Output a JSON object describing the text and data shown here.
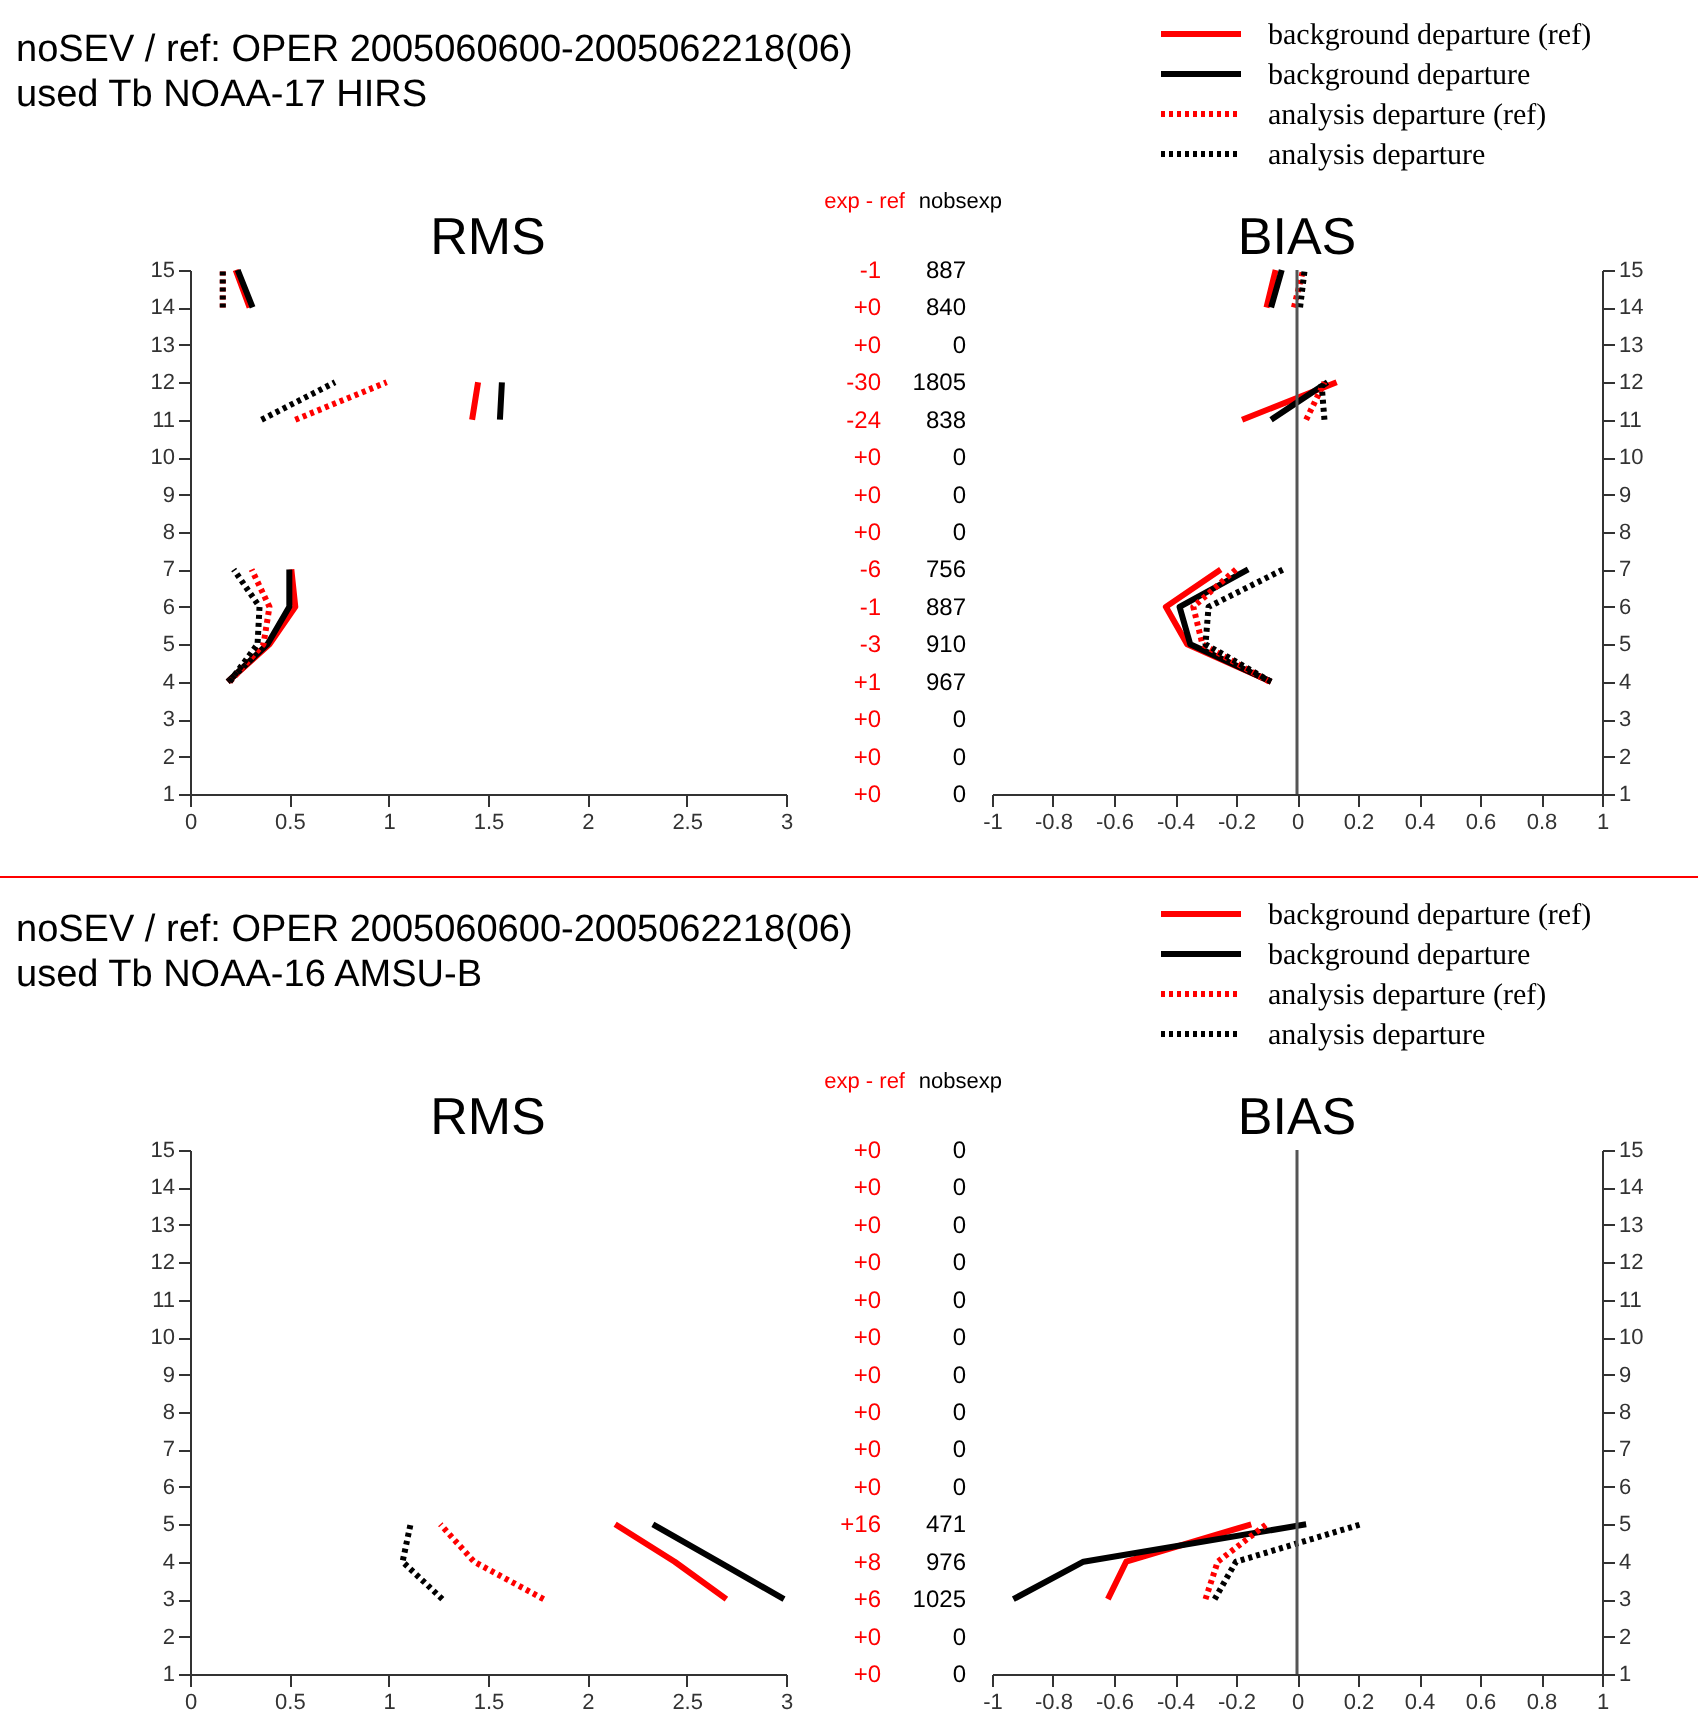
{
  "chart_data": [
    {
      "type": "line",
      "title": "RMS",
      "legend": "top right",
      "annotations": [
        "noSEV / ref: OPER 2005060600-2005062218(06)",
        "used Tb NOAA-17 HIRS"
      ],
      "xlim": [
        0,
        3
      ],
      "xticks": [
        0,
        0.5,
        1,
        1.5,
        2,
        2.5,
        3
      ],
      "ylim": [
        1,
        15
      ],
      "yticks": [
        1,
        2,
        3,
        4,
        5,
        6,
        7,
        8,
        9,
        10,
        11,
        12,
        13,
        14,
        15
      ],
      "series": [
        {
          "name": "background departure (ref)",
          "color": "#ff0000",
          "line_style": "solid",
          "x": [
            null,
            null,
            null,
            0.19,
            0.4,
            0.53,
            0.51,
            null,
            null,
            null,
            1.42,
            1.45,
            null,
            0.3,
            0.23
          ],
          "values": [
            null,
            null,
            null,
            4,
            5,
            6,
            7,
            null,
            null,
            null,
            11,
            12,
            null,
            14,
            15
          ]
        },
        {
          "name": "background departure",
          "color": "#000000",
          "line_style": "solid",
          "x": [
            null,
            null,
            null,
            0.19,
            0.39,
            0.5,
            0.5,
            null,
            null,
            null,
            1.56,
            1.57,
            null,
            0.315,
            0.24
          ],
          "values": [
            null,
            null,
            null,
            4,
            5,
            6,
            7,
            null,
            null,
            null,
            11,
            12,
            null,
            14,
            15
          ]
        },
        {
          "name": "analysis departure (ref)",
          "color": "#ff0000",
          "line_style": "dotted",
          "x": [
            null,
            null,
            null,
            0.2,
            0.37,
            0.4,
            0.31,
            null,
            null,
            null,
            0.53,
            0.99,
            null,
            0.165,
            0.165
          ],
          "values": [
            null,
            null,
            null,
            4,
            5,
            6,
            7,
            null,
            null,
            null,
            11,
            12,
            null,
            14,
            15
          ]
        },
        {
          "name": "analysis departure",
          "color": "#000000",
          "line_style": "dotted",
          "x": [
            null,
            null,
            null,
            0.2,
            0.34,
            0.35,
            0.22,
            null,
            null,
            null,
            0.36,
            0.73,
            null,
            0.165,
            0.165
          ],
          "values": [
            null,
            null,
            null,
            4,
            5,
            6,
            7,
            null,
            null,
            null,
            11,
            12,
            null,
            14,
            15
          ]
        }
      ]
    },
    {
      "type": "other",
      "colors": [
        "#ff0000",
        "#000000"
      ],
      "annotations": [
        "exp - ref",
        "nobsexp",
        "-1",
        "887",
        "+0",
        "840",
        "+0",
        "0",
        "-30",
        "1805",
        "-24",
        "838",
        "+0",
        "0",
        "+0",
        "0",
        "+0",
        "0",
        "-6",
        "756",
        "-1",
        "887",
        "-3",
        "910",
        "+1",
        "967",
        "+0",
        "0",
        "+0",
        "0",
        "+0",
        "0"
      ]
    },
    {
      "type": "line",
      "title": "BIAS",
      "xlim": [
        -1,
        1
      ],
      "xticks": [
        -1,
        -0.8,
        -0.6,
        -0.4,
        -0.2,
        0,
        0.2,
        0.4,
        0.6,
        0.8,
        1
      ],
      "ylim": [
        1,
        15
      ],
      "yticks": [
        1,
        2,
        3,
        4,
        5,
        6,
        7,
        8,
        9,
        10,
        11,
        12,
        13,
        14,
        15
      ],
      "ref_lines": [
        {
          "axis": "x",
          "value": 0,
          "color": "#555555"
        }
      ],
      "series": [
        {
          "color": "#ff0000",
          "line_style": "solid",
          "x": [
            null,
            null,
            null,
            -0.085,
            -0.36,
            -0.43,
            -0.25,
            null,
            null,
            null,
            -0.18,
            0.13,
            null,
            -0.1,
            -0.07
          ],
          "values": [
            null,
            null,
            null,
            4,
            5,
            6,
            7,
            null,
            null,
            null,
            11,
            12,
            null,
            14,
            15
          ]
        },
        {
          "color": "#000000",
          "line_style": "solid",
          "x": [
            null,
            null,
            null,
            -0.085,
            -0.35,
            -0.385,
            -0.16,
            null,
            null,
            null,
            -0.085,
            0.1,
            null,
            -0.085,
            -0.05
          ],
          "values": [
            null,
            null,
            null,
            4,
            5,
            6,
            7,
            null,
            null,
            null,
            11,
            12,
            null,
            14,
            15
          ]
        },
        {
          "color": "#ff0000",
          "line_style": "dotted",
          "x": [
            null,
            null,
            null,
            -0.09,
            -0.31,
            -0.34,
            -0.2,
            null,
            null,
            null,
            0.03,
            0.09,
            null,
            -0.01,
            0.02
          ],
          "values": [
            null,
            null,
            null,
            4,
            5,
            6,
            7,
            null,
            null,
            null,
            11,
            12,
            null,
            14,
            15
          ]
        },
        {
          "color": "#000000",
          "line_style": "dotted",
          "x": [
            null,
            null,
            null,
            -0.085,
            -0.3,
            -0.29,
            -0.045,
            null,
            null,
            null,
            0.09,
            0.08,
            null,
            0.01,
            0.025
          ],
          "values": [
            null,
            null,
            null,
            4,
            5,
            6,
            7,
            null,
            null,
            null,
            11,
            12,
            null,
            14,
            15
          ]
        }
      ]
    },
    {
      "type": "line",
      "title": "RMS",
      "legend": "top right",
      "annotations": [
        "noSEV / ref: OPER 2005060600-2005062218(06)",
        "used Tb NOAA-16 AMSU-B"
      ],
      "xlim": [
        0,
        3
      ],
      "xticks": [
        0,
        0.5,
        1,
        1.5,
        2,
        2.5,
        3
      ],
      "ylim": [
        1,
        15
      ],
      "yticks": [
        1,
        2,
        3,
        4,
        5,
        6,
        7,
        8,
        9,
        10,
        11,
        12,
        13,
        14,
        15
      ],
      "series": [
        {
          "name": "background departure (ref)",
          "color": "#ff0000",
          "line_style": "solid",
          "x": [
            null,
            null,
            2.7,
            2.44,
            2.14,
            null,
            null,
            null,
            null,
            null,
            null,
            null,
            null,
            null,
            null
          ],
          "values": [
            null,
            null,
            3,
            4,
            5,
            null,
            null,
            null,
            null,
            null,
            null,
            null,
            null,
            null,
            null
          ]
        },
        {
          "name": "background departure",
          "color": "#000000",
          "line_style": "solid",
          "x": [
            null,
            null,
            2.99,
            2.66,
            2.33,
            null,
            null,
            null,
            null,
            null,
            null,
            null,
            null,
            null,
            null
          ],
          "values": [
            null,
            null,
            3,
            4,
            5,
            null,
            null,
            null,
            null,
            null,
            null,
            null,
            null,
            null,
            null
          ]
        },
        {
          "name": "analysis departure (ref)",
          "color": "#ff0000",
          "line_style": "dotted",
          "x": [
            null,
            null,
            1.78,
            1.43,
            1.26,
            null,
            null,
            null,
            null,
            null,
            null,
            null,
            null,
            null,
            null
          ],
          "values": [
            null,
            null,
            3,
            4,
            5,
            null,
            null,
            null,
            null,
            null,
            null,
            null,
            null,
            null,
            null
          ]
        },
        {
          "name": "analysis departure",
          "color": "#000000",
          "line_style": "dotted",
          "x": [
            null,
            null,
            1.27,
            1.07,
            1.11,
            null,
            null,
            null,
            null,
            null,
            null,
            null,
            null,
            null,
            null
          ],
          "values": [
            null,
            null,
            3,
            4,
            5,
            null,
            null,
            null,
            null,
            null,
            null,
            null,
            null,
            null,
            null
          ]
        }
      ]
    },
    {
      "type": "other",
      "colors": [
        "#ff0000",
        "#000000"
      ],
      "annotations": [
        "exp - ref",
        "nobsexp",
        "+0",
        "0",
        "+0",
        "0",
        "+0",
        "0",
        "+0",
        "0",
        "+0",
        "0",
        "+0",
        "0",
        "+0",
        "0",
        "+0",
        "0",
        "+0",
        "0",
        "+0",
        "0",
        "+16",
        "471",
        "+8",
        "976",
        "+6",
        "1025",
        "+0",
        "0",
        "+0",
        "0"
      ]
    },
    {
      "type": "line",
      "title": "BIAS",
      "xlim": [
        -1,
        1
      ],
      "xticks": [
        -1,
        -0.8,
        -0.6,
        -0.4,
        -0.2,
        0,
        0.2,
        0.4,
        0.6,
        0.8,
        1
      ],
      "ylim": [
        1,
        15
      ],
      "yticks": [
        1,
        2,
        3,
        4,
        5,
        6,
        7,
        8,
        9,
        10,
        11,
        12,
        13,
        14,
        15
      ],
      "ref_lines": [
        {
          "axis": "x",
          "value": 0,
          "color": "#555555"
        }
      ],
      "series": [
        {
          "color": "#ff0000",
          "line_style": "solid",
          "x": [
            null,
            null,
            -0.62,
            -0.56,
            -0.15,
            null,
            null,
            null,
            null,
            null,
            null,
            null,
            null,
            null,
            null
          ],
          "values": [
            null,
            null,
            3,
            4,
            5,
            null,
            null,
            null,
            null,
            null,
            null,
            null,
            null,
            null,
            null
          ]
        },
        {
          "color": "#000000",
          "line_style": "solid",
          "x": [
            null,
            null,
            -0.93,
            -0.7,
            0.03,
            null,
            null,
            null,
            null,
            null,
            null,
            null,
            null,
            null,
            null
          ],
          "values": [
            null,
            null,
            3,
            4,
            5,
            null,
            null,
            null,
            null,
            null,
            null,
            null,
            null,
            null,
            null
          ]
        },
        {
          "color": "#ff0000",
          "line_style": "dotted",
          "x": [
            null,
            null,
            -0.3,
            -0.26,
            -0.1,
            null,
            null,
            null,
            null,
            null,
            null,
            null,
            null,
            null,
            null
          ],
          "values": [
            null,
            null,
            3,
            4,
            5,
            null,
            null,
            null,
            null,
            null,
            null,
            null,
            null,
            null,
            null
          ]
        },
        {
          "color": "#000000",
          "line_style": "dotted",
          "x": [
            null,
            null,
            -0.27,
            -0.2,
            0.21,
            null,
            null,
            null,
            null,
            null,
            null,
            null,
            null,
            null,
            null
          ],
          "values": [
            null,
            null,
            3,
            4,
            5,
            null,
            null,
            null,
            null,
            null,
            null,
            null,
            null,
            null,
            null
          ]
        }
      ]
    }
  ]
}
